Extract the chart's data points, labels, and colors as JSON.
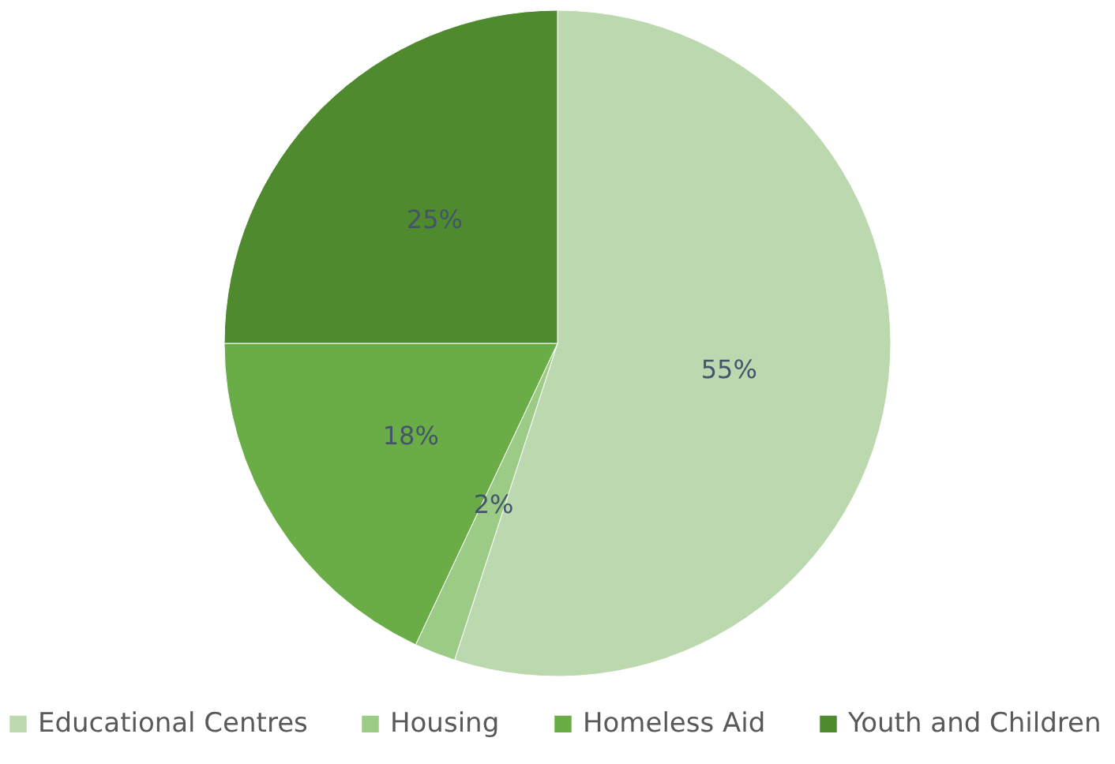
{
  "chart_data": {
    "type": "pie",
    "categories": [
      "Educational Centres",
      "Housing",
      "Homeless Aid",
      "Youth and Children"
    ],
    "values": [
      55,
      2,
      18,
      25
    ],
    "colors": [
      "#bcd8ae",
      "#9ccb86",
      "#6aac45",
      "#4f8a2f"
    ],
    "value_labels": [
      "55%",
      "2%",
      "18%",
      "25%"
    ],
    "legend": "bottom"
  }
}
